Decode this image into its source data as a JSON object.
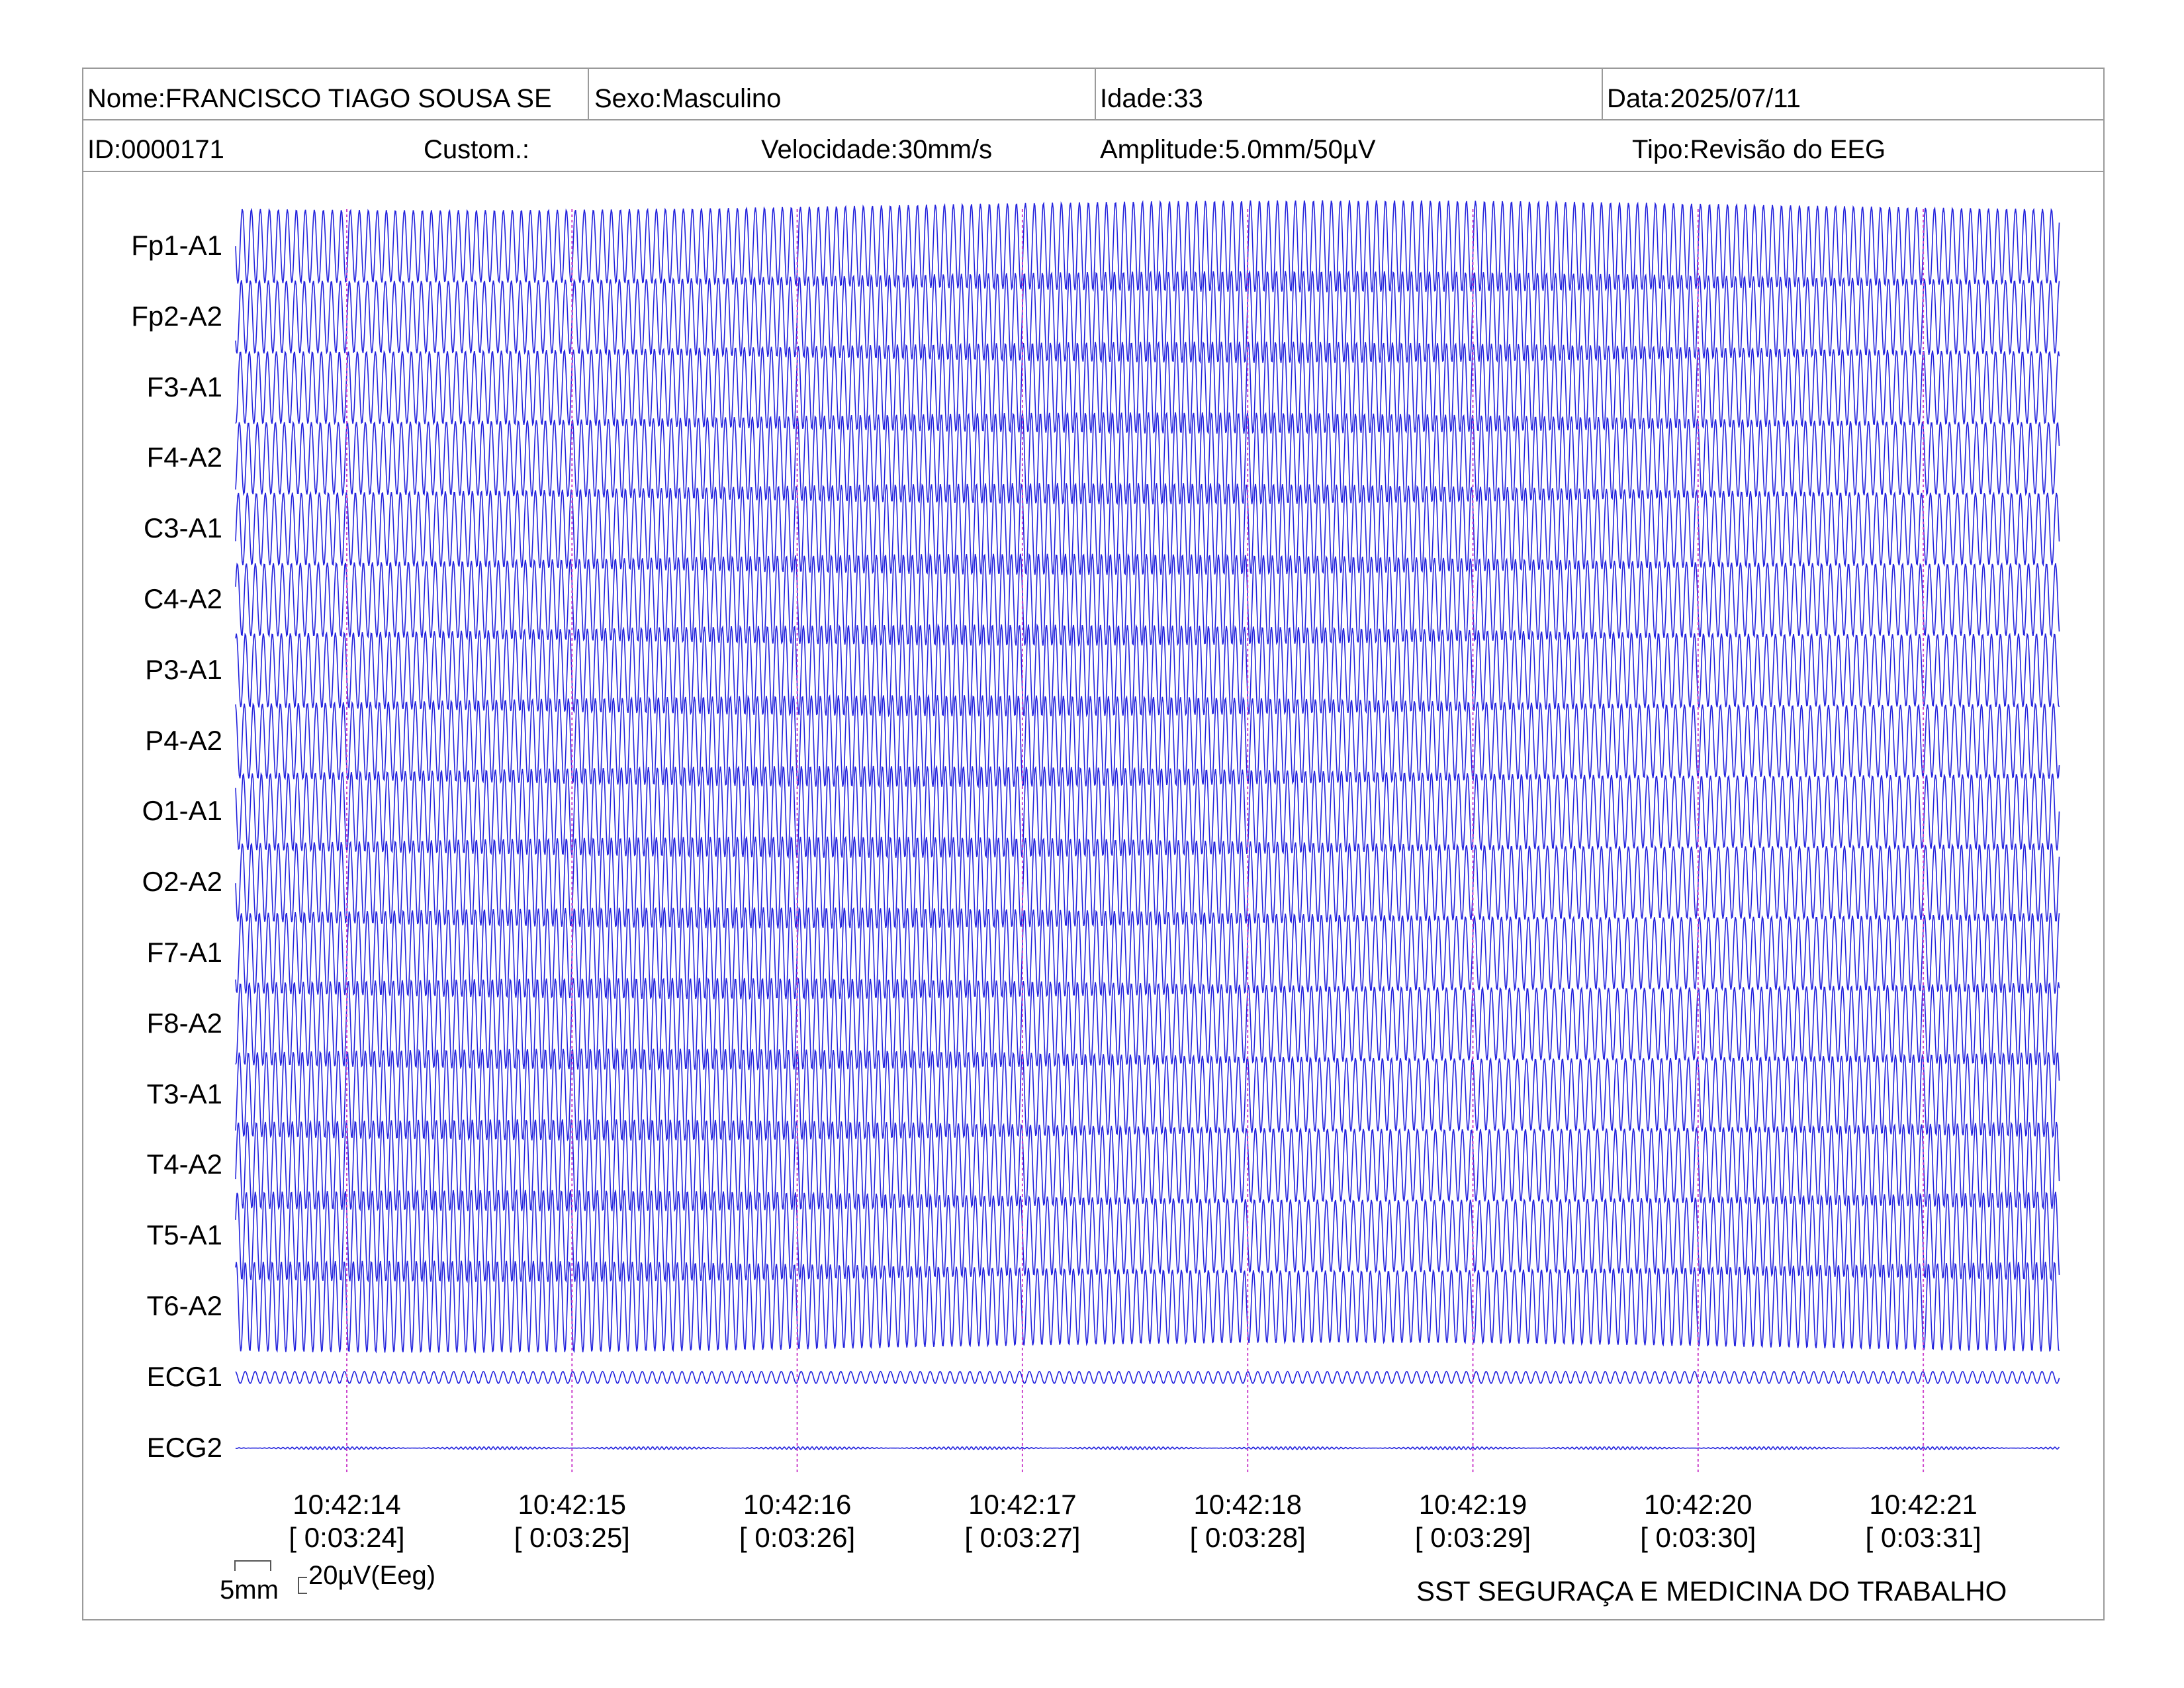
{
  "header": {
    "nome": "Nome:FRANCISCO TIAGO SOUSA SE",
    "sexo": "Sexo:Masculino",
    "idade": "Idade:33",
    "data": "Data:2025/07/11",
    "id": "ID:0000171",
    "custom": "Custom.:",
    "velocidade": "Velocidade:30mm/s",
    "amplitude": "Amplitude:5.0mm/50µV",
    "tipo": "Tipo:Revisão do EEG"
  },
  "scale": {
    "time": "5mm",
    "amplitude": "20µV(Eeg)"
  },
  "footer": "SST SEGURAÇA E MEDICINA DO TRABALHO",
  "colors": {
    "trace": "#2222dd",
    "marker": "#cc44cc",
    "border": "#9a9a9a"
  },
  "chart_data": {
    "type": "line",
    "channels": [
      "Fp1-A1",
      "Fp2-A2",
      "F3-A1",
      "F4-A2",
      "C3-A1",
      "C4-A2",
      "P3-A1",
      "P4-A2",
      "O1-A1",
      "O2-A2",
      "F7-A1",
      "F8-A2",
      "T3-A1",
      "T4-A2",
      "T5-A1",
      "T6-A2",
      "ECG1",
      "ECG2"
    ],
    "time_ticks": [
      {
        "clock": "10:42:14",
        "elapsed": "[ 0:03:24]"
      },
      {
        "clock": "10:42:15",
        "elapsed": "[ 0:03:25]"
      },
      {
        "clock": "10:42:16",
        "elapsed": "[ 0:03:26]"
      },
      {
        "clock": "10:42:17",
        "elapsed": "[ 0:03:27]"
      },
      {
        "clock": "10:42:18",
        "elapsed": "[ 0:03:28]"
      },
      {
        "clock": "10:42:19",
        "elapsed": "[ 0:03:29]"
      },
      {
        "clock": "10:42:20",
        "elapsed": "[ 0:03:30]"
      },
      {
        "clock": "10:42:21",
        "elapsed": "[ 0:03:31]"
      }
    ],
    "grid": false
  }
}
